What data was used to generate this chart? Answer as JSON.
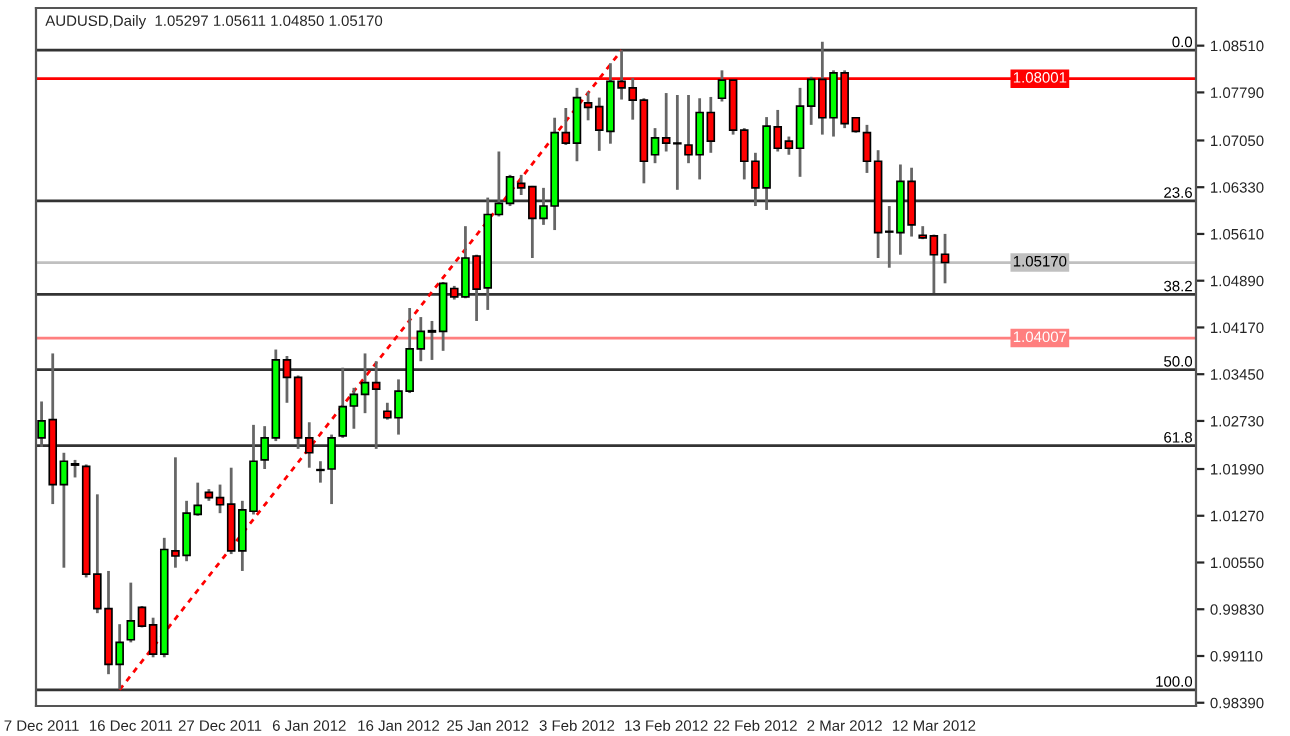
{
  "chart_data": {
    "type": "candlestick",
    "title": "AUDUSD,Daily  1.05297 1.05611 1.04850 1.05170",
    "categories": [
      "7 Dec 2011",
      null,
      null,
      null,
      null,
      null,
      null,
      null,
      "16 Dec 2011",
      null,
      null,
      null,
      null,
      null,
      null,
      null,
      "27 Dec 2011",
      null,
      null,
      null,
      null,
      null,
      null,
      null,
      "6 Jan 2012",
      null,
      null,
      null,
      null,
      null,
      null,
      null,
      "16 Jan 2012",
      null,
      null,
      null,
      null,
      null,
      null,
      null,
      "25 Jan 2012",
      null,
      null,
      null,
      null,
      null,
      null,
      null,
      "3 Feb 2012",
      null,
      null,
      null,
      null,
      null,
      null,
      null,
      "13 Feb 2012",
      null,
      null,
      null,
      null,
      null,
      null,
      null,
      "22 Feb 2012",
      null,
      null,
      null,
      null,
      null,
      null,
      null,
      "2 Mar 2012",
      null,
      null,
      null,
      null,
      null,
      null,
      null,
      "12 Mar 2012",
      null,
      null,
      null,
      null,
      null,
      null,
      null,
      null,
      null,
      null,
      null,
      null,
      null,
      null,
      null,
      null,
      null,
      null,
      null,
      null,
      null,
      null,
      null
    ],
    "ohlc": [
      [
        1.0247,
        1.0303,
        1.0233,
        1.0273
      ],
      [
        1.0275,
        1.0377,
        1.0145,
        1.0175
      ],
      [
        1.0175,
        1.0224,
        1.0047,
        1.0211
      ],
      [
        1.0207,
        1.0213,
        1.0186,
        1.0205
      ],
      [
        1.0203,
        1.0206,
        1.0032,
        1.0037
      ],
      [
        1.0037,
        1.016,
        0.9977,
        0.9984
      ],
      [
        0.9984,
        1.0042,
        0.9883,
        0.9898
      ],
      [
        0.9898,
        0.996,
        0.986,
        0.9932
      ],
      [
        0.9936,
        1.0024,
        0.9932,
        0.9965
      ],
      [
        0.9986,
        0.9988,
        0.9955,
        0.9957
      ],
      [
        0.9959,
        0.997,
        0.9909,
        0.9914
      ],
      [
        0.9914,
        1.0093,
        0.9909,
        1.0075
      ],
      [
        1.0073,
        1.0217,
        1.0047,
        1.0065
      ],
      [
        1.0066,
        1.015,
        1.0057,
        1.0131
      ],
      [
        1.0129,
        1.0178,
        1.0127,
        1.0143
      ],
      [
        1.0163,
        1.0168,
        1.015,
        1.0155
      ],
      [
        1.0155,
        1.0175,
        1.0131,
        1.0144
      ],
      [
        1.0145,
        1.0201,
        1.0068,
        1.0073
      ],
      [
        1.0073,
        1.015,
        1.0042,
        1.0136
      ],
      [
        1.0134,
        1.0267,
        1.0129,
        1.0211
      ],
      [
        1.0213,
        1.0265,
        1.0199,
        1.0247
      ],
      [
        1.0247,
        1.0383,
        1.0242,
        1.0367
      ],
      [
        1.0367,
        1.0373,
        1.0301,
        1.034
      ],
      [
        1.034,
        1.0343,
        1.023,
        1.0247
      ],
      [
        1.0247,
        1.0271,
        1.0201,
        1.0224
      ],
      [
        1.0198,
        1.0211,
        1.0178,
        1.0197
      ],
      [
        1.0199,
        1.0252,
        1.0145,
        1.0247
      ],
      [
        1.025,
        1.0355,
        1.0247,
        1.0295
      ],
      [
        1.0296,
        1.0324,
        1.0261,
        1.0314
      ],
      [
        1.0314,
        1.0377,
        1.0285,
        1.0332
      ],
      [
        1.0332,
        1.0365,
        1.023,
        1.0322
      ],
      [
        1.0288,
        1.0301,
        1.0275,
        1.0278
      ],
      [
        1.0278,
        1.0337,
        1.0252,
        1.0319
      ],
      [
        1.0319,
        1.0447,
        1.0316,
        1.0384
      ],
      [
        1.0384,
        1.0433,
        1.0365,
        1.0411
      ],
      [
        1.0412,
        1.0427,
        1.0367,
        1.041
      ],
      [
        1.0411,
        1.0487,
        1.0381,
        1.0485
      ],
      [
        1.0477,
        1.0481,
        1.046,
        1.0464
      ],
      [
        1.0464,
        1.0573,
        1.0462,
        1.0524
      ],
      [
        1.0527,
        1.0529,
        1.0427,
        1.0476
      ],
      [
        1.0478,
        1.0617,
        1.0444,
        1.0591
      ],
      [
        1.0591,
        1.0688,
        1.0588,
        1.0608
      ],
      [
        1.0608,
        1.0652,
        1.0604,
        1.0649
      ],
      [
        1.0639,
        1.0652,
        1.0621,
        1.0632
      ],
      [
        1.0634,
        1.0635,
        1.0524,
        1.0585
      ],
      [
        1.0585,
        1.0632,
        1.0575,
        1.0604
      ],
      [
        1.0604,
        1.074,
        1.0567,
        1.0717
      ],
      [
        1.0717,
        1.0755,
        1.0698,
        1.0701
      ],
      [
        1.0701,
        1.0786,
        1.0673,
        1.0771
      ],
      [
        1.0763,
        1.078,
        1.0736,
        1.0756
      ],
      [
        1.0757,
        1.0771,
        1.0689,
        1.0721
      ],
      [
        1.0719,
        1.0824,
        1.07,
        1.0796
      ],
      [
        1.0796,
        1.0844,
        1.0768,
        1.0786
      ],
      [
        1.0786,
        1.0801,
        1.0737,
        1.0767
      ],
      [
        1.0767,
        1.077,
        1.0639,
        1.0673
      ],
      [
        1.0683,
        1.0724,
        1.067,
        1.0709
      ],
      [
        1.0709,
        1.0778,
        1.0688,
        1.0701
      ],
      [
        1.0701,
        1.0775,
        1.0629,
        1.07
      ],
      [
        1.0698,
        1.0775,
        1.067,
        1.0683
      ],
      [
        1.0683,
        1.077,
        1.0645,
        1.0748
      ],
      [
        1.0748,
        1.0772,
        1.0686,
        1.0704
      ],
      [
        1.077,
        1.0813,
        1.0765,
        1.0798
      ],
      [
        1.0798,
        1.0799,
        1.0714,
        1.0721
      ],
      [
        1.0721,
        1.0724,
        1.0645,
        1.0673
      ],
      [
        1.0673,
        1.0686,
        1.0604,
        1.0632
      ],
      [
        1.0632,
        1.0741,
        1.0598,
        1.0727
      ],
      [
        1.0726,
        1.0752,
        1.0688,
        1.0693
      ],
      [
        1.0704,
        1.0711,
        1.0683,
        1.0693
      ],
      [
        1.0693,
        1.0786,
        1.0649,
        1.0758
      ],
      [
        1.0758,
        1.0803,
        1.0729,
        1.0799
      ],
      [
        1.0799,
        1.0857,
        1.0714,
        1.074
      ],
      [
        1.074,
        1.0813,
        1.0711,
        1.0809
      ],
      [
        1.0809,
        1.0813,
        1.0724,
        1.0731
      ],
      [
        1.074,
        1.0741,
        1.0717,
        1.0719
      ],
      [
        1.0717,
        1.0729,
        1.0655,
        1.0673
      ],
      [
        1.0673,
        1.069,
        1.0524,
        1.0563
      ],
      [
        1.0565,
        1.0604,
        1.0509,
        1.0564
      ],
      [
        1.0563,
        1.0668,
        1.0529,
        1.0642
      ],
      [
        1.0642,
        1.0663,
        1.0557,
        1.0575
      ],
      [
        1.0559,
        1.0573,
        1.0553,
        1.0555
      ],
      [
        1.0558,
        1.056,
        1.047,
        1.0529
      ],
      [
        1.05297,
        1.05611,
        1.0485,
        1.0517
      ],
      null,
      null,
      null,
      null,
      null,
      null,
      null,
      null,
      null,
      null,
      null,
      null,
      null,
      null,
      null,
      null,
      null,
      null,
      null,
      null,
      null,
      null
    ],
    "series": [
      {
        "type": "line",
        "values": [
          null,
          null,
          null,
          null,
          null,
          null,
          null,
          0.9859,
          null,
          null,
          null,
          null,
          null,
          null,
          null,
          null,
          null,
          null,
          null,
          null,
          null,
          null,
          null,
          null,
          null,
          null,
          null,
          null,
          null,
          null,
          null,
          null,
          null,
          null,
          null,
          null,
          null,
          null,
          null,
          null,
          null,
          null,
          null,
          null,
          null,
          null,
          null,
          null,
          null,
          null,
          null,
          null,
          1.0844,
          null,
          null,
          null,
          null,
          null,
          null,
          null,
          null,
          null,
          null,
          null,
          null,
          null,
          null,
          null,
          null,
          null,
          null,
          null,
          null,
          null,
          null,
          null,
          null,
          null,
          null,
          null,
          null,
          null,
          null,
          null,
          null,
          null,
          null,
          null,
          null,
          null,
          null,
          null,
          null,
          null,
          null,
          null,
          null,
          null,
          null,
          null,
          null,
          null,
          null,
          null
        ],
        "color": "#ff0000",
        "line_style": "dashed"
      }
    ],
    "annotations": [
      {
        "text": "0.0",
        "y": 1.0844
      },
      {
        "text": "23.6",
        "y": 1.0612
      },
      {
        "text": "38.2",
        "y": 1.0468
      },
      {
        "text": "50.0",
        "y": 1.0352
      },
      {
        "text": "61.8",
        "y": 1.0235
      },
      {
        "text": "100.0",
        "y": 0.9859
      }
    ],
    "ylim": [
      0.9834,
      1.0909
    ],
    "yticks": [
      {
        "value": 1.0851,
        "label": "1.08510"
      },
      {
        "value": 1.0779,
        "label": "1.07790"
      },
      {
        "value": 1.0705,
        "label": "1.07050"
      },
      {
        "value": 1.0633,
        "label": "1.06330"
      },
      {
        "value": 1.0561,
        "label": "1.05610"
      },
      {
        "value": 1.0489,
        "label": "1.04890"
      },
      {
        "value": 1.0417,
        "label": "1.04170"
      },
      {
        "value": 1.0345,
        "label": "1.03450"
      },
      {
        "value": 1.0273,
        "label": "1.02730"
      },
      {
        "value": 1.0199,
        "label": "1.01990"
      },
      {
        "value": 1.0127,
        "label": "1.01270"
      },
      {
        "value": 1.0055,
        "label": "1.00550"
      },
      {
        "value": 0.9983,
        "label": "0.99830"
      },
      {
        "value": 0.9911,
        "label": "0.99110"
      },
      {
        "value": 0.9839,
        "label": "0.98390"
      }
    ],
    "ref_lines": [
      {
        "axis": "y",
        "value": 1.0844,
        "color": "#333333"
      },
      {
        "axis": "y",
        "value": 1.0612,
        "color": "#333333"
      },
      {
        "axis": "y",
        "value": 1.0468,
        "color": "#333333"
      },
      {
        "axis": "y",
        "value": 1.0352,
        "color": "#333333"
      },
      {
        "axis": "y",
        "value": 1.0235,
        "color": "#333333"
      },
      {
        "axis": "y",
        "value": 0.9859,
        "color": "#333333"
      },
      {
        "axis": "y",
        "value": 1.08001,
        "label": "1.08001",
        "color": "#ff0000"
      },
      {
        "axis": "y",
        "value": 1.04007,
        "label": "1.04007",
        "color": "#ff7f7f"
      },
      {
        "axis": "y",
        "value": 1.0517,
        "label": "1.05170",
        "color": "#c0c0c0"
      }
    ]
  }
}
